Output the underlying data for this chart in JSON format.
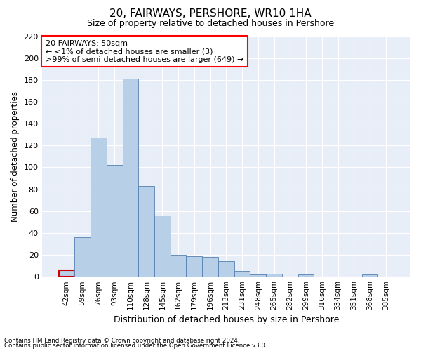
{
  "title": "20, FAIRWAYS, PERSHORE, WR10 1HA",
  "subtitle": "Size of property relative to detached houses in Pershore",
  "xlabel": "Distribution of detached houses by size in Pershore",
  "ylabel": "Number of detached properties",
  "bar_color": "#b8cfe8",
  "bar_edge_color": "#5580b0",
  "highlight_color": "#cc0000",
  "background_color": "#ffffff",
  "plot_bg_color": "#e8eef8",
  "grid_color": "#ffffff",
  "categories": [
    "42sqm",
    "59sqm",
    "76sqm",
    "93sqm",
    "110sqm",
    "128sqm",
    "145sqm",
    "162sqm",
    "179sqm",
    "196sqm",
    "213sqm",
    "231sqm",
    "248sqm",
    "265sqm",
    "282sqm",
    "299sqm",
    "316sqm",
    "334sqm",
    "351sqm",
    "368sqm",
    "385sqm"
  ],
  "values": [
    6,
    36,
    127,
    102,
    181,
    83,
    56,
    20,
    19,
    18,
    14,
    5,
    2,
    3,
    0,
    2,
    0,
    0,
    0,
    2,
    0
  ],
  "highlight_index": 0,
  "ylim": [
    0,
    220
  ],
  "yticks": [
    0,
    20,
    40,
    60,
    80,
    100,
    120,
    140,
    160,
    180,
    200,
    220
  ],
  "annotation_line1": "20 FAIRWAYS: 50sqm",
  "annotation_line2": "← <1% of detached houses are smaller (3)",
  "annotation_line3": ">99% of semi-detached houses are larger (649) →",
  "footnote1": "Contains HM Land Registry data © Crown copyright and database right 2024.",
  "footnote2": "Contains public sector information licensed under the Open Government Licence v3.0."
}
